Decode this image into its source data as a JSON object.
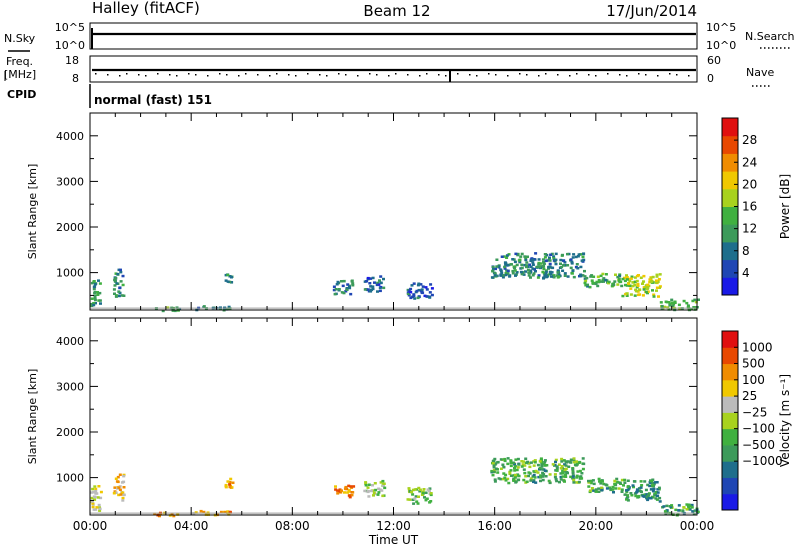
{
  "header": {
    "station": "Halley (fitACF)",
    "beam": "Beam 12",
    "date": "17/Jun/2014"
  },
  "strips": {
    "nsky_label": "N.Sky",
    "nsearch_label": "N.Search",
    "freq_label_line1": "Freq.",
    "freq_label_line2": "[MHz]",
    "nave_label": "Nave",
    "cpid_label": "CPID",
    "cpid_value": "normal (fast) 151",
    "nsky_ticks": [
      "10^5",
      "10^0"
    ],
    "nsearch_ticks": [
      "10^5",
      "10^0"
    ],
    "freq_ticks": [
      "18",
      "8"
    ],
    "nave_ticks": [
      "60",
      "0"
    ]
  },
  "chart_data": [
    {
      "type": "heatmap",
      "title": "",
      "xlabel": "",
      "ylabel": "Slant Range [km]",
      "ylim": [
        180,
        4500
      ],
      "yticks": [
        "1000",
        "2000",
        "3000",
        "4000"
      ],
      "colorbar_label": "Power [dB]",
      "colorbar_ticks": [
        "4",
        "8",
        "12",
        "16",
        "20",
        "24",
        "28"
      ],
      "colorbar_range": [
        0,
        32
      ],
      "colors": [
        "#1a1ae6",
        "#1f46b4",
        "#1e6e8c",
        "#3c9a5a",
        "#40b040",
        "#a8d21e",
        "#f0c800",
        "#f08c00",
        "#e84800",
        "#e01010"
      ],
      "regions": [
        {
          "t": [
            0.0,
            0.4
          ],
          "r": [
            300,
            900
          ],
          "level": 0.35
        },
        {
          "t": [
            0.9,
            1.3
          ],
          "r": [
            500,
            1100
          ],
          "level": 0.3
        },
        {
          "t": [
            2.5,
            3.5
          ],
          "r": [
            180,
            260
          ],
          "level": 0.4
        },
        {
          "t": [
            4.0,
            5.5
          ],
          "r": [
            200,
            300
          ],
          "level": 0.3
        },
        {
          "t": [
            5.3,
            5.6
          ],
          "r": [
            800,
            1000
          ],
          "level": 0.35
        },
        {
          "t": [
            9.6,
            10.4
          ],
          "r": [
            550,
            850
          ],
          "level": 0.25
        },
        {
          "t": [
            10.8,
            11.6
          ],
          "r": [
            600,
            950
          ],
          "level": 0.2
        },
        {
          "t": [
            12.5,
            13.5
          ],
          "r": [
            450,
            800
          ],
          "level": 0.2
        },
        {
          "t": [
            15.8,
            19.5
          ],
          "r": [
            900,
            1450
          ],
          "level": 0.3
        },
        {
          "t": [
            19.5,
            21.0
          ],
          "r": [
            700,
            1000
          ],
          "level": 0.4
        },
        {
          "t": [
            21.0,
            22.5
          ],
          "r": [
            500,
            1000
          ],
          "level": 0.55
        },
        {
          "t": [
            22.5,
            24.0
          ],
          "r": [
            200,
            450
          ],
          "level": 0.45
        }
      ]
    },
    {
      "type": "heatmap",
      "title": "",
      "xlabel": "Time UT",
      "ylabel": "Slant Range [km]",
      "ylim": [
        180,
        4500
      ],
      "xticks": [
        "00:00",
        "04:00",
        "08:00",
        "12:00",
        "16:00",
        "20:00",
        "00:00"
      ],
      "yticks": [
        "1000",
        "2000",
        "3000",
        "4000"
      ],
      "colorbar_label": "Velocity [m s⁻¹]",
      "colorbar_ticks": [
        "1000",
        "500",
        "100",
        "25",
        "−25",
        "−100",
        "−500",
        "−1000"
      ],
      "colors": [
        "#1a1ae6",
        "#1f46b4",
        "#1e6e8c",
        "#3c9a5a",
        "#40b040",
        "#a8d21e",
        "#bbbbbb",
        "#f0c800",
        "#f08c00",
        "#e84800",
        "#e01010"
      ],
      "regions": [
        {
          "t": [
            0.0,
            0.4
          ],
          "r": [
            300,
            900
          ],
          "level": 0.6
        },
        {
          "t": [
            0.9,
            1.3
          ],
          "r": [
            500,
            1100
          ],
          "level": 0.7
        },
        {
          "t": [
            2.5,
            3.5
          ],
          "r": [
            180,
            260
          ],
          "level": 0.75
        },
        {
          "t": [
            4.0,
            5.5
          ],
          "r": [
            200,
            300
          ],
          "level": 0.72
        },
        {
          "t": [
            5.3,
            5.6
          ],
          "r": [
            800,
            1000
          ],
          "level": 0.75
        },
        {
          "t": [
            9.6,
            10.4
          ],
          "r": [
            550,
            850
          ],
          "level": 0.78
        },
        {
          "t": [
            10.8,
            11.6
          ],
          "r": [
            600,
            950
          ],
          "level": 0.5
        },
        {
          "t": [
            12.5,
            13.5
          ],
          "r": [
            450,
            800
          ],
          "level": 0.45
        },
        {
          "t": [
            15.8,
            19.5
          ],
          "r": [
            900,
            1450
          ],
          "level": 0.38
        },
        {
          "t": [
            19.5,
            21.0
          ],
          "r": [
            700,
            1000
          ],
          "level": 0.38
        },
        {
          "t": [
            21.0,
            22.5
          ],
          "r": [
            500,
            1000
          ],
          "level": 0.32
        },
        {
          "t": [
            22.5,
            24.0
          ],
          "r": [
            200,
            450
          ],
          "level": 0.35
        }
      ]
    }
  ]
}
